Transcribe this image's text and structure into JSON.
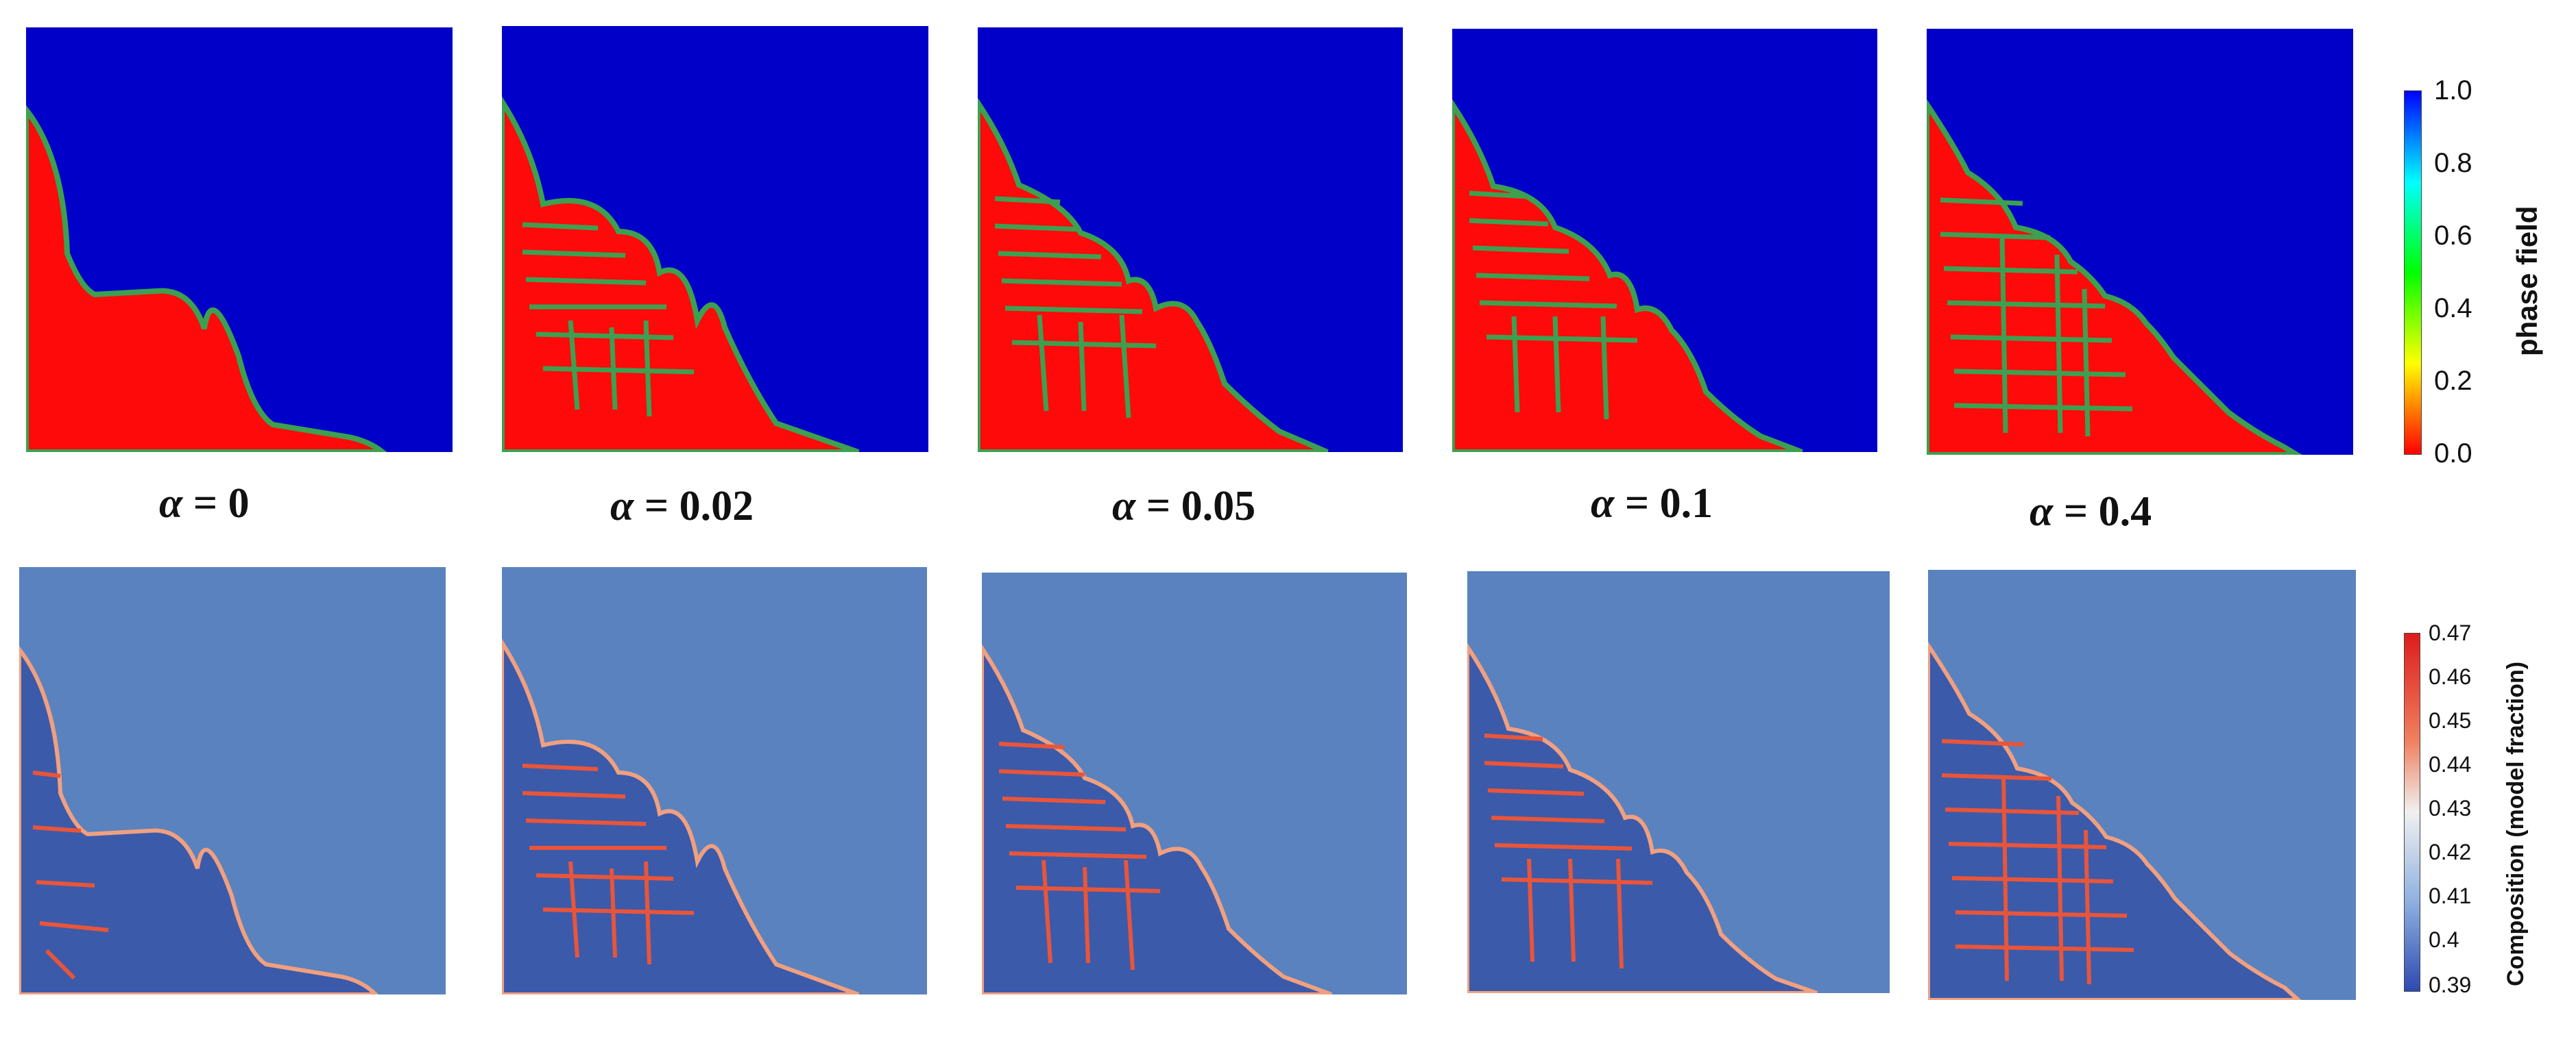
{
  "alpha_labels": [
    {
      "symbol": "α",
      "text": " =  0"
    },
    {
      "symbol": "α",
      "text": " = 0.02"
    },
    {
      "symbol": "α",
      "text": " = 0.05"
    },
    {
      "symbol": "α",
      "text": " = 0.1"
    },
    {
      "symbol": "α",
      "text": " = 0.4"
    }
  ],
  "phase_colorbar": {
    "title": "phase field",
    "ticks": [
      "1.0",
      "0.8",
      "0.6",
      "0.4",
      "0.2",
      "0.0"
    ]
  },
  "composition_colorbar": {
    "title": "Composition (model fraction)",
    "ticks": [
      "0.47",
      "0.46",
      "0.45",
      "0.44",
      "0.43",
      "0.42",
      "0.41",
      "0.4",
      "0.39"
    ]
  },
  "colors": {
    "phase_liquid": "#0000c8",
    "phase_solid": "#ff0a0a",
    "phase_interface": "#3ca050",
    "composition_background": "#5a82be",
    "composition_solid": "#3c5aaa",
    "composition_enriched": "#e8553a"
  }
}
